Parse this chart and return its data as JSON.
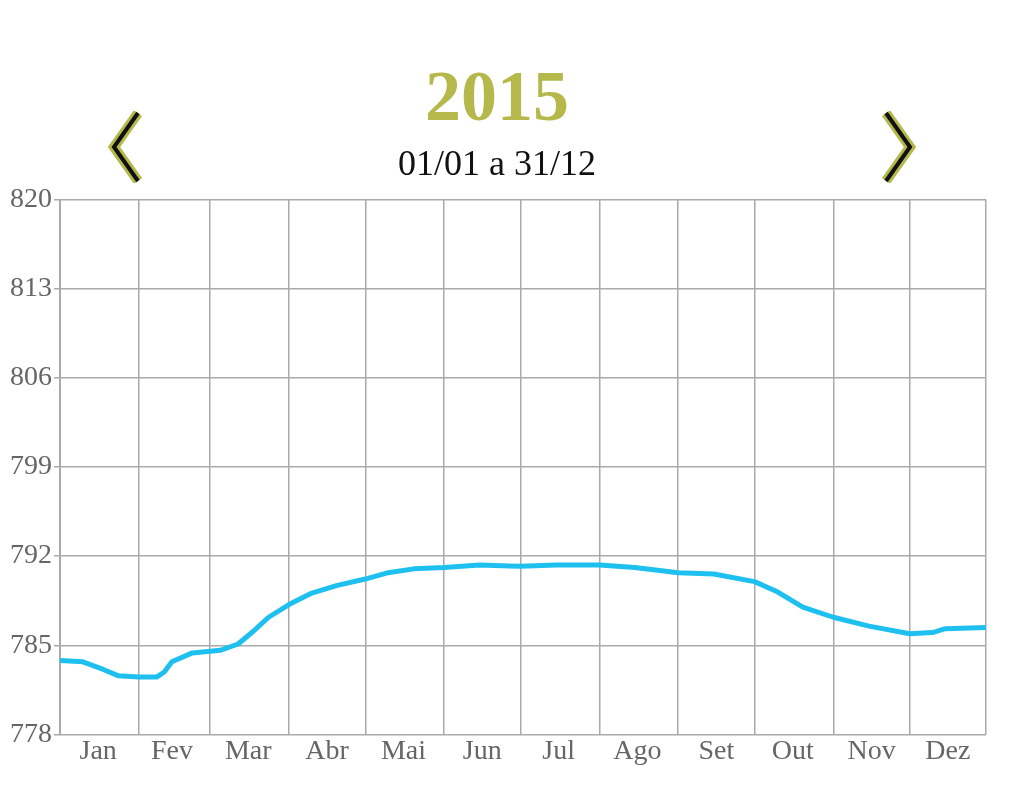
{
  "chart_data": {
    "type": "line",
    "title": "2015",
    "subtitle": "01/01 a 31/12",
    "x": [
      "2015-01-01",
      "2015-01-10",
      "2015-01-18",
      "2015-01-24",
      "2015-02-01",
      "2015-02-08",
      "2015-02-11",
      "2015-02-14",
      "2015-02-22",
      "2015-03-05",
      "2015-03-12",
      "2015-03-18",
      "2015-03-24",
      "2015-04-01",
      "2015-04-10",
      "2015-04-20",
      "2015-05-01",
      "2015-05-10",
      "2015-05-20",
      "2015-06-01",
      "2015-06-15",
      "2015-07-01",
      "2015-07-15",
      "2015-08-01",
      "2015-08-15",
      "2015-09-01",
      "2015-09-15",
      "2015-10-01",
      "2015-10-10",
      "2015-10-20",
      "2015-11-01",
      "2015-11-15",
      "2015-12-01",
      "2015-12-10",
      "2015-12-15",
      "2015-12-31"
    ],
    "series": [
      {
        "color": "#1ec0f0",
        "values": [
          783.8,
          783.7,
          783.1,
          782.6,
          782.5,
          782.5,
          782.9,
          783.7,
          784.4,
          784.6,
          785.1,
          786.1,
          787.2,
          788.2,
          789.1,
          789.7,
          790.2,
          790.7,
          791.0,
          791.1,
          791.3,
          791.2,
          791.3,
          791.3,
          791.1,
          790.7,
          790.6,
          790.0,
          789.2,
          788.0,
          787.2,
          786.5,
          785.9,
          786.0,
          786.3,
          786.4
        ]
      }
    ],
    "xlim": [
      "2015-01-01",
      "2015-12-31"
    ],
    "xticks": [
      {
        "value": "2015-01-01",
        "label": null
      },
      {
        "value": "2015-01-16",
        "label": "Jan"
      },
      {
        "value": "2015-02-01",
        "label": null
      },
      {
        "value": "2015-02-14",
        "label": "Fev"
      },
      {
        "value": "2015-03-01",
        "label": null
      },
      {
        "value": "2015-03-16",
        "label": "Mar"
      },
      {
        "value": "2015-04-01",
        "label": null
      },
      {
        "value": "2015-04-16",
        "label": "Abr"
      },
      {
        "value": "2015-05-01",
        "label": null
      },
      {
        "value": "2015-05-16",
        "label": "Mai"
      },
      {
        "value": "2015-06-01",
        "label": null
      },
      {
        "value": "2015-06-16",
        "label": "Jun"
      },
      {
        "value": "2015-07-01",
        "label": null
      },
      {
        "value": "2015-07-16",
        "label": "Jul"
      },
      {
        "value": "2015-08-01",
        "label": null
      },
      {
        "value": "2015-08-16",
        "label": "Ago"
      },
      {
        "value": "2015-09-01",
        "label": null
      },
      {
        "value": "2015-09-16",
        "label": "Set"
      },
      {
        "value": "2015-10-01",
        "label": null
      },
      {
        "value": "2015-10-16",
        "label": "Out"
      },
      {
        "value": "2015-11-01",
        "label": null
      },
      {
        "value": "2015-11-16",
        "label": "Nov"
      },
      {
        "value": "2015-12-01",
        "label": null
      },
      {
        "value": "2015-12-16",
        "label": "Dez"
      },
      {
        "value": "2015-12-31",
        "label": null
      }
    ],
    "ylim": [
      778,
      820
    ],
    "yticks": [
      778,
      785,
      792,
      799,
      806,
      813,
      820
    ],
    "grid": true,
    "legend": false,
    "marker": "none",
    "line_style": "solid"
  }
}
